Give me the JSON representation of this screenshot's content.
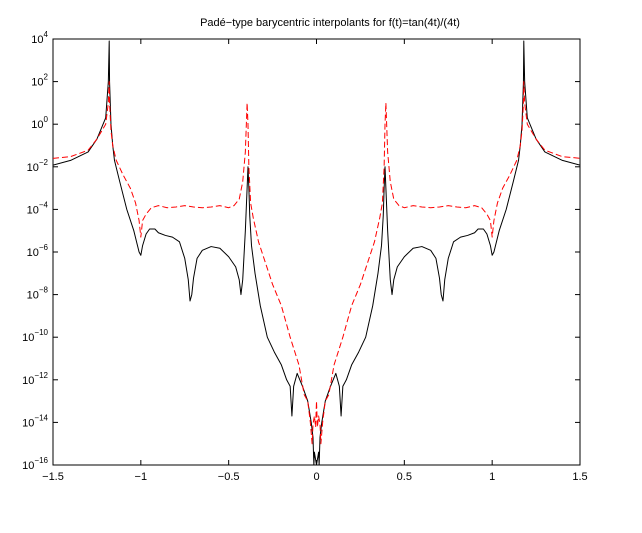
{
  "chart_data": {
    "type": "line",
    "title": "Padé−type barycentric interpolants for f(t)=tan(4t)/(4t)",
    "xlabel": "",
    "ylabel": "",
    "xlim": [
      -1.5,
      1.5
    ],
    "ylim": [
      1e-16,
      10000.0
    ],
    "yscale": "log",
    "grid": false,
    "xticks": [
      {
        "value": -1.5,
        "label": "−1.5"
      },
      {
        "value": -1,
        "label": "−1"
      },
      {
        "value": -0.5,
        "label": "−0.5"
      },
      {
        "value": 0,
        "label": "0"
      },
      {
        "value": 0.5,
        "label": "0.5"
      },
      {
        "value": 1,
        "label": "1"
      },
      {
        "value": 1.5,
        "label": "1.5"
      }
    ],
    "yticks": [
      {
        "exp": 4,
        "base": "10",
        "sup": "4"
      },
      {
        "exp": 2,
        "base": "10",
        "sup": "2"
      },
      {
        "exp": 0,
        "base": "10",
        "sup": "0"
      },
      {
        "exp": -2,
        "base": "10",
        "sup": "−2"
      },
      {
        "exp": -4,
        "base": "10",
        "sup": "−4"
      },
      {
        "exp": -6,
        "base": "10",
        "sup": "−6"
      },
      {
        "exp": -8,
        "base": "10",
        "sup": "−8"
      },
      {
        "exp": -10,
        "base": "10",
        "sup": "−10"
      },
      {
        "exp": -12,
        "base": "10",
        "sup": "−12"
      },
      {
        "exp": -14,
        "base": "10",
        "sup": "−14"
      },
      {
        "exp": -16,
        "base": "10",
        "sup": "−16"
      }
    ],
    "series": [
      {
        "style": "solid",
        "color": "#000000",
        "x": [
          -1.5,
          -1.4,
          -1.3,
          -1.25,
          -1.2,
          -1.185,
          -1.18,
          -1.178,
          -1.17,
          -1.16,
          -1.15,
          -1.12,
          -1.08,
          -1.04,
          -1.01,
          -1.0,
          -0.99,
          -0.97,
          -0.95,
          -0.92,
          -0.9,
          -0.86,
          -0.82,
          -0.78,
          -0.75,
          -0.73,
          -0.72,
          -0.71,
          -0.7,
          -0.68,
          -0.65,
          -0.6,
          -0.55,
          -0.5,
          -0.46,
          -0.44,
          -0.43,
          -0.42,
          -0.405,
          -0.395,
          -0.39,
          -0.385,
          -0.38,
          -0.37,
          -0.35,
          -0.32,
          -0.28,
          -0.24,
          -0.2,
          -0.17,
          -0.15,
          -0.14,
          -0.13,
          -0.11,
          -0.08,
          -0.05,
          -0.03,
          -0.02,
          -0.015,
          -0.012,
          0,
          0.012,
          0.015,
          0.02,
          0.03,
          0.05,
          0.08,
          0.11,
          0.13,
          0.14,
          0.15,
          0.17,
          0.2,
          0.24,
          0.28,
          0.32,
          0.35,
          0.37,
          0.38,
          0.385,
          0.39,
          0.395,
          0.405,
          0.42,
          0.43,
          0.44,
          0.46,
          0.5,
          0.55,
          0.6,
          0.65,
          0.68,
          0.7,
          0.71,
          0.72,
          0.73,
          0.75,
          0.78,
          0.82,
          0.86,
          0.9,
          0.92,
          0.95,
          0.97,
          0.99,
          1.0,
          1.01,
          1.04,
          1.08,
          1.12,
          1.15,
          1.16,
          1.17,
          1.178,
          1.18,
          1.185,
          1.2,
          1.25,
          1.3,
          1.4,
          1.5
        ],
        "y": [
          0.012,
          0.02,
          0.05,
          0.2,
          2,
          100,
          8000,
          100,
          1,
          0.1,
          0.02,
          0.002,
          0.0001,
          1e-05,
          1e-06,
          7e-07,
          2e-06,
          7e-06,
          1.2e-05,
          1.2e-05,
          8e-06,
          6e-06,
          5e-06,
          3e-06,
          5e-07,
          5e-08,
          5e-09,
          1e-08,
          6e-08,
          5e-07,
          1.2e-06,
          1.8e-06,
          1.5e-06,
          6e-07,
          2e-07,
          5e-08,
          1e-08,
          5e-08,
          1e-05,
          0.001,
          0.01,
          0.001,
          5e-05,
          2e-06,
          1e-07,
          3e-09,
          1e-10,
          2e-11,
          5e-12,
          1e-12,
          5e-13,
          2e-14,
          5e-13,
          2e-12,
          5e-13,
          1e-13,
          1e-14,
          2e-15,
          1e-16,
          4e-16,
          1e-16,
          4e-16,
          1e-16,
          2e-15,
          1e-14,
          1e-13,
          5e-13,
          2e-12,
          5e-13,
          2e-14,
          5e-13,
          1e-12,
          5e-12,
          2e-11,
          1e-10,
          3e-09,
          1e-07,
          2e-06,
          5e-05,
          0.001,
          0.01,
          0.001,
          1e-05,
          5e-08,
          1e-08,
          5e-08,
          2e-07,
          6e-07,
          1.5e-06,
          1.8e-06,
          1.2e-06,
          5e-07,
          6e-08,
          1e-08,
          5e-09,
          5e-08,
          5e-07,
          3e-06,
          5e-06,
          6e-06,
          8e-06,
          1.2e-05,
          1.2e-05,
          7e-06,
          2e-06,
          7e-07,
          1e-06,
          1e-05,
          0.0001,
          0.002,
          0.02,
          0.1,
          1,
          100,
          8000,
          100,
          2,
          0.2,
          0.05,
          0.02,
          0.012
        ]
      },
      {
        "style": "dashed",
        "color": "#ff0000",
        "x": [
          -1.5,
          -1.4,
          -1.3,
          -1.25,
          -1.2,
          -1.185,
          -1.18,
          -1.178,
          -1.17,
          -1.16,
          -1.14,
          -1.1,
          -1.06,
          -1.03,
          -1.01,
          -1.0,
          -0.99,
          -0.97,
          -0.94,
          -0.9,
          -0.85,
          -0.8,
          -0.75,
          -0.7,
          -0.65,
          -0.6,
          -0.55,
          -0.5,
          -0.47,
          -0.44,
          -0.42,
          -0.405,
          -0.395,
          -0.39,
          -0.385,
          -0.375,
          -0.36,
          -0.33,
          -0.29,
          -0.25,
          -0.2,
          -0.15,
          -0.1,
          -0.07,
          -0.05,
          -0.035,
          -0.025,
          -0.02,
          -0.012,
          -0.005,
          0,
          0.005,
          0.012,
          0.02,
          0.025,
          0.035,
          0.05,
          0.07,
          0.1,
          0.15,
          0.2,
          0.25,
          0.29,
          0.33,
          0.36,
          0.375,
          0.385,
          0.39,
          0.395,
          0.405,
          0.42,
          0.44,
          0.47,
          0.5,
          0.55,
          0.6,
          0.65,
          0.7,
          0.75,
          0.8,
          0.85,
          0.9,
          0.94,
          0.97,
          0.99,
          1.0,
          1.01,
          1.03,
          1.06,
          1.1,
          1.14,
          1.16,
          1.17,
          1.178,
          1.18,
          1.185,
          1.2,
          1.25,
          1.3,
          1.4,
          1.5
        ],
        "y": [
          0.025,
          0.03,
          0.06,
          0.2,
          1,
          10,
          100,
          10,
          0.5,
          0.1,
          0.02,
          0.004,
          0.001,
          0.0002,
          3e-05,
          5e-06,
          3e-05,
          6e-05,
          0.00012,
          0.00015,
          0.00012,
          0.00013,
          0.00015,
          0.00013,
          0.00012,
          0.00013,
          0.00015,
          0.00012,
          0.00015,
          0.0003,
          0.002,
          0.05,
          10,
          1,
          0.01,
          0.0002,
          4e-05,
          3e-06,
          3e-07,
          3e-08,
          3e-09,
          1e-10,
          5e-12,
          2e-13,
          1e-13,
          1e-14,
          1e-15,
          8e-15,
          2e-14,
          6e-15,
          1e-13,
          6e-15,
          2e-14,
          8e-15,
          1e-15,
          1e-14,
          1e-13,
          2e-13,
          5e-12,
          1e-10,
          3e-09,
          3e-08,
          3e-07,
          3e-06,
          4e-05,
          0.0002,
          0.01,
          1,
          10,
          0.05,
          0.002,
          0.0003,
          0.00015,
          0.00012,
          0.00015,
          0.00013,
          0.00012,
          0.00013,
          0.00015,
          0.00013,
          0.00012,
          0.00015,
          0.00012,
          6e-05,
          3e-05,
          5e-06,
          3e-05,
          0.0002,
          0.001,
          0.004,
          0.02,
          0.1,
          0.5,
          10,
          100,
          10,
          1,
          0.2,
          0.06,
          0.03,
          0.025
        ]
      }
    ]
  }
}
